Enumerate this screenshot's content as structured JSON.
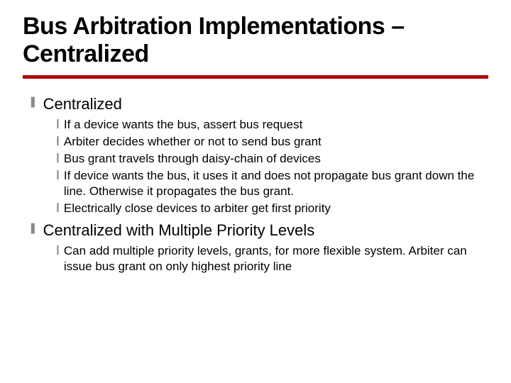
{
  "title": "Bus Arbitration Implementations – Centralized",
  "title_fontsize": 34,
  "rule_color": "#b00000",
  "bullet1_glyph": "❚",
  "bullet1_color": "#8a8a8a",
  "bullet1_fontsize": 15,
  "bullet2_glyph": "❙",
  "bullet2_color": "#8a8a8a",
  "bullet2_fontsize": 13,
  "text1_fontsize": 22,
  "text2_fontsize": 17,
  "sections": [
    {
      "heading": "Centralized",
      "items": [
        "If a device wants the bus, assert bus request",
        "Arbiter decides whether or not to send bus grant",
        "Bus grant travels through daisy-chain of devices",
        "If device wants the bus, it uses it and does not propagate bus grant down the line.  Otherwise it propagates the bus grant.",
        "Electrically close devices to arbiter get first priority"
      ]
    },
    {
      "heading": "Centralized with Multiple Priority Levels",
      "items": [
        "Can add multiple priority levels, grants, for more flexible system.  Arbiter can issue bus grant on only highest priority line"
      ]
    }
  ]
}
